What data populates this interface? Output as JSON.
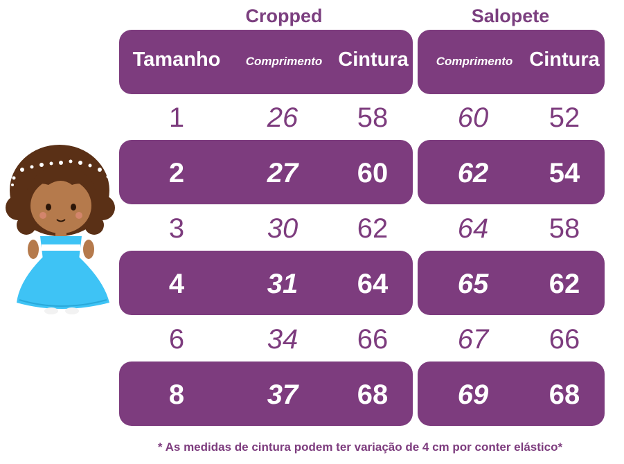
{
  "sections": {
    "cropped_title": "Cropped",
    "salopete_title": "Salopete"
  },
  "headers": {
    "tamanho": "Tamanho",
    "cropped_comprimento": "Comprimento",
    "cropped_cintura": "Cintura",
    "salopete_comprimento": "Comprimento",
    "salopete_cintura": "Cintura"
  },
  "rows": [
    {
      "tamanho": "1",
      "cropped_comprimento": "26",
      "cropped_cintura": "58",
      "salopete_comprimento": "60",
      "salopete_cintura": "52"
    },
    {
      "tamanho": "2",
      "cropped_comprimento": "27",
      "cropped_cintura": "60",
      "salopete_comprimento": "62",
      "salopete_cintura": "54"
    },
    {
      "tamanho": "3",
      "cropped_comprimento": "30",
      "cropped_cintura": "62",
      "salopete_comprimento": "64",
      "salopete_cintura": "58"
    },
    {
      "tamanho": "4",
      "cropped_comprimento": "31",
      "cropped_cintura": "64",
      "salopete_comprimento": "65",
      "salopete_cintura": "62"
    },
    {
      "tamanho": "6",
      "cropped_comprimento": "34",
      "cropped_cintura": "66",
      "salopete_comprimento": "67",
      "salopete_cintura": "66"
    },
    {
      "tamanho": "8",
      "cropped_comprimento": "37",
      "cropped_cintura": "68",
      "salopete_comprimento": "69",
      "salopete_cintura": "68"
    }
  ],
  "footnote": "* As medidas de cintura podem ter variação de 4 cm por conter elástico*",
  "colors": {
    "accent": "#7d3c7e",
    "dress": "#3ec3f5",
    "hair": "#5a3016",
    "skin": "#b57a4c"
  },
  "icons": {
    "illustration": "girl-illustration"
  }
}
